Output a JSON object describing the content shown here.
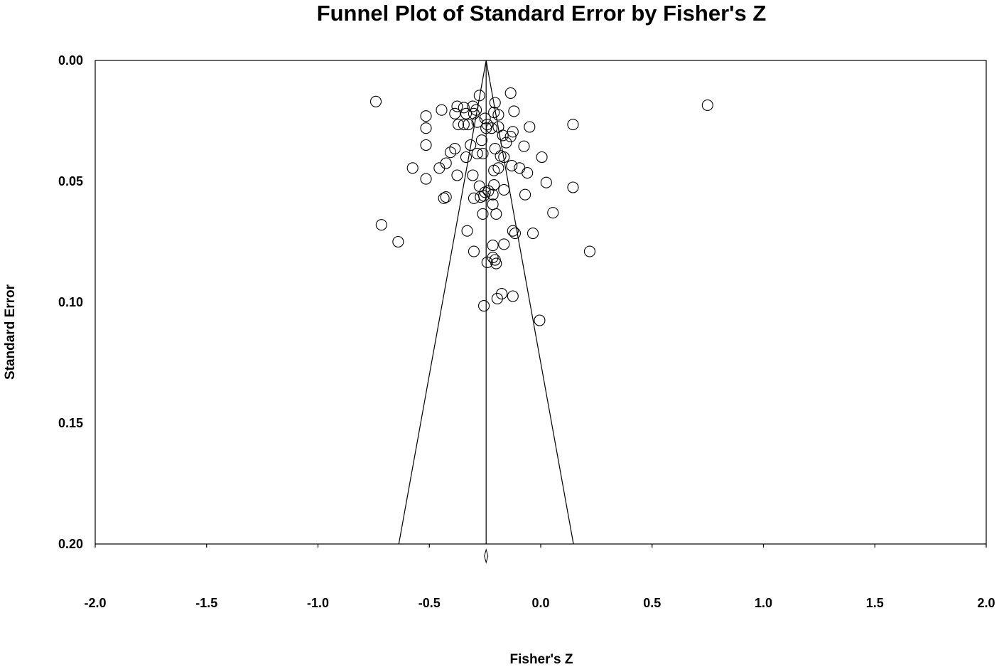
{
  "chart_data": {
    "type": "scatter",
    "title": "Funnel Plot of Standard Error by Fisher's Z",
    "xlabel": "Fisher's Z",
    "ylabel": "Standard Error",
    "xlim": [
      -2.0,
      2.0
    ],
    "ylim": [
      0.0,
      0.2
    ],
    "y_inverted": true,
    "grid": false,
    "legend": "none",
    "x_ticks": [
      "-2.0",
      "-1.5",
      "-1.0",
      "-0.5",
      "0.0",
      "0.5",
      "1.0",
      "1.5",
      "2.0"
    ],
    "y_ticks": [
      "0.00",
      "0.05",
      "0.10",
      "0.15",
      "0.20"
    ],
    "x_tick_values": [
      -2.0,
      -1.5,
      -1.0,
      -0.5,
      0.0,
      0.5,
      1.0,
      1.5,
      2.0
    ],
    "y_tick_values": [
      0.0,
      0.05,
      0.1,
      0.15,
      0.2
    ],
    "summary_effect": -0.245,
    "funnel_bottom": [
      -0.637,
      0.147
    ],
    "marker": "open-circle",
    "points": [
      [
        -0.74,
        0.017
      ],
      [
        0.749,
        0.0185
      ],
      [
        -0.275,
        0.0145
      ],
      [
        -0.135,
        0.0135
      ],
      [
        -0.205,
        0.0175
      ],
      [
        -0.305,
        0.019
      ],
      [
        -0.375,
        0.019
      ],
      [
        -0.345,
        0.0195
      ],
      [
        -0.29,
        0.0205
      ],
      [
        -0.445,
        0.0205
      ],
      [
        -0.385,
        0.022
      ],
      [
        -0.335,
        0.022
      ],
      [
        -0.3,
        0.022
      ],
      [
        -0.21,
        0.0215
      ],
      [
        -0.19,
        0.0225
      ],
      [
        -0.12,
        0.021
      ],
      [
        -0.515,
        0.023
      ],
      [
        -0.25,
        0.024
      ],
      [
        -0.37,
        0.0265
      ],
      [
        -0.345,
        0.0265
      ],
      [
        -0.325,
        0.0265
      ],
      [
        -0.285,
        0.0255
      ],
      [
        -0.24,
        0.0265
      ],
      [
        0.145,
        0.0265
      ],
      [
        -0.515,
        0.028
      ],
      [
        -0.245,
        0.028
      ],
      [
        -0.22,
        0.028
      ],
      [
        -0.19,
        0.0275
      ],
      [
        -0.05,
        0.0275
      ],
      [
        -0.125,
        0.0295
      ],
      [
        -0.17,
        0.031
      ],
      [
        -0.135,
        0.0315
      ],
      [
        -0.265,
        0.033
      ],
      [
        -0.155,
        0.034
      ],
      [
        -0.315,
        0.035
      ],
      [
        -0.515,
        0.035
      ],
      [
        -0.075,
        0.0355
      ],
      [
        -0.385,
        0.0365
      ],
      [
        -0.205,
        0.0365
      ],
      [
        -0.405,
        0.038
      ],
      [
        -0.285,
        0.0385
      ],
      [
        -0.26,
        0.0385
      ],
      [
        -0.335,
        0.04
      ],
      [
        -0.18,
        0.0395
      ],
      [
        -0.165,
        0.04
      ],
      [
        0.005,
        0.04
      ],
      [
        -0.425,
        0.0425
      ],
      [
        -0.575,
        0.0445
      ],
      [
        -0.455,
        0.0445
      ],
      [
        -0.13,
        0.0435
      ],
      [
        -0.19,
        0.0445
      ],
      [
        -0.095,
        0.0445
      ],
      [
        -0.21,
        0.0455
      ],
      [
        -0.06,
        0.0465
      ],
      [
        -0.305,
        0.0475
      ],
      [
        -0.375,
        0.0475
      ],
      [
        -0.515,
        0.049
      ],
      [
        0.025,
        0.0505
      ],
      [
        -0.275,
        0.052
      ],
      [
        -0.21,
        0.0515
      ],
      [
        0.145,
        0.0525
      ],
      [
        -0.165,
        0.0535
      ],
      [
        -0.25,
        0.0545
      ],
      [
        -0.235,
        0.054
      ],
      [
        -0.27,
        0.0565
      ],
      [
        -0.3,
        0.057
      ],
      [
        -0.425,
        0.0565
      ],
      [
        -0.435,
        0.057
      ],
      [
        -0.255,
        0.056
      ],
      [
        -0.215,
        0.0555
      ],
      [
        -0.07,
        0.0555
      ],
      [
        -0.215,
        0.0595
      ],
      [
        -0.26,
        0.0635
      ],
      [
        -0.2,
        0.0635
      ],
      [
        0.055,
        0.063
      ],
      [
        -0.715,
        0.068
      ],
      [
        -0.33,
        0.0705
      ],
      [
        -0.125,
        0.0705
      ],
      [
        -0.115,
        0.0715
      ],
      [
        -0.035,
        0.0715
      ],
      [
        -0.64,
        0.075
      ],
      [
        -0.165,
        0.076
      ],
      [
        -0.215,
        0.0765
      ],
      [
        -0.3,
        0.079
      ],
      [
        0.22,
        0.079
      ],
      [
        -0.215,
        0.0815
      ],
      [
        -0.205,
        0.0825
      ],
      [
        -0.24,
        0.0835
      ],
      [
        -0.2,
        0.084
      ],
      [
        -0.175,
        0.0965
      ],
      [
        -0.125,
        0.0975
      ],
      [
        -0.195,
        0.0985
      ],
      [
        -0.255,
        0.1015
      ],
      [
        -0.005,
        0.1075
      ]
    ]
  }
}
